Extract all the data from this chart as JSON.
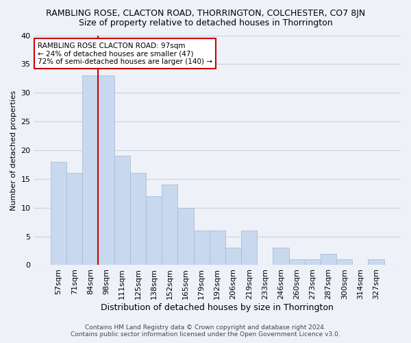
{
  "title": "RAMBLING ROSE, CLACTON ROAD, THORRINGTON, COLCHESTER, CO7 8JN",
  "subtitle": "Size of property relative to detached houses in Thorrington",
  "xlabel": "Distribution of detached houses by size in Thorrington",
  "ylabel": "Number of detached properties",
  "categories": [
    "57sqm",
    "71sqm",
    "84sqm",
    "98sqm",
    "111sqm",
    "125sqm",
    "138sqm",
    "152sqm",
    "165sqm",
    "179sqm",
    "192sqm",
    "206sqm",
    "219sqm",
    "233sqm",
    "246sqm",
    "260sqm",
    "273sqm",
    "287sqm",
    "300sqm",
    "314sqm",
    "327sqm"
  ],
  "values": [
    18,
    16,
    33,
    33,
    19,
    16,
    12,
    14,
    10,
    6,
    6,
    3,
    6,
    0,
    3,
    1,
    1,
    2,
    1,
    0,
    1
  ],
  "bar_color": "#c8d8ee",
  "bar_edge_color": "#aabdd6",
  "vline_color": "#cc0000",
  "vline_x_index": 3,
  "annotation_line1": "RAMBLING ROSE CLACTON ROAD: 97sqm",
  "annotation_line2": "← 24% of detached houses are smaller (47)",
  "annotation_line3": "72% of semi-detached houses are larger (140) →",
  "annotation_box_color": "#ffffff",
  "annotation_box_edge": "#cc0000",
  "ylim": [
    0,
    40
  ],
  "yticks": [
    0,
    5,
    10,
    15,
    20,
    25,
    30,
    35,
    40
  ],
  "title_fontsize": 9,
  "subtitle_fontsize": 9,
  "xlabel_fontsize": 9,
  "ylabel_fontsize": 8,
  "tick_fontsize": 8,
  "annot_fontsize": 7.5,
  "footer_line1": "Contains HM Land Registry data © Crown copyright and database right 2024.",
  "footer_line2": "Contains public sector information licensed under the Open Government Licence v3.0.",
  "background_color": "#eef2f8",
  "grid_color": "#c8d0dc"
}
